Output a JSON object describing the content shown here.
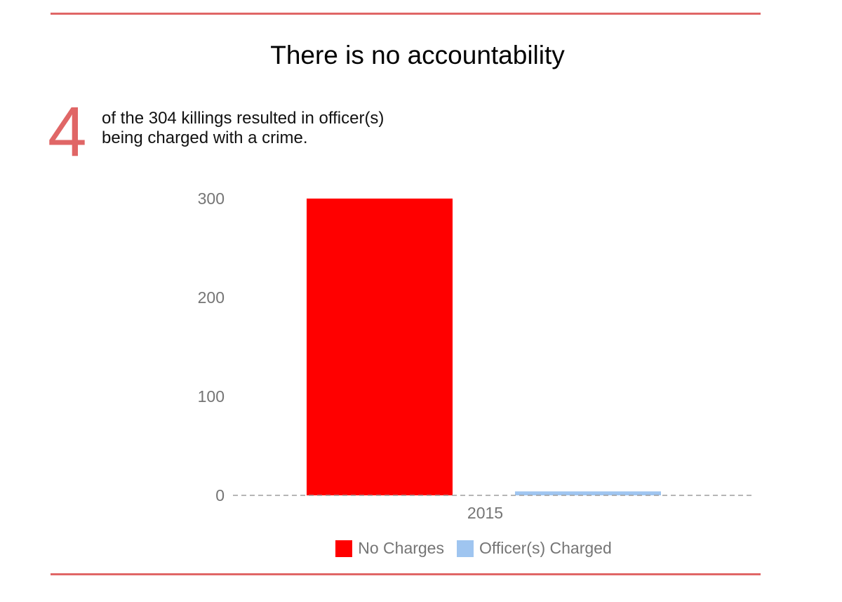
{
  "title": "There is no accountability",
  "highlight": {
    "number": "4",
    "text_line1": "of the 304 killings resulted in officer(s)",
    "text_line2": "being charged with a crime."
  },
  "colors": {
    "rule": "#e06666",
    "highlight": "#e06666",
    "no_charges": "#ff0000",
    "officers_charged": "#9fc5f0",
    "zero_line": "#9e9e9e"
  },
  "chart_data": {
    "type": "bar",
    "categories": [
      "2015"
    ],
    "series": [
      {
        "name": "No Charges",
        "values": [
          300
        ]
      },
      {
        "name": "Officer(s) Charged",
        "values": [
          4
        ]
      }
    ],
    "title": "There is no accountability",
    "xlabel": "",
    "ylabel": "",
    "ylim": [
      0,
      300
    ],
    "yticks": [
      0,
      100,
      200,
      300
    ],
    "grid": false,
    "legend": "bottom"
  }
}
